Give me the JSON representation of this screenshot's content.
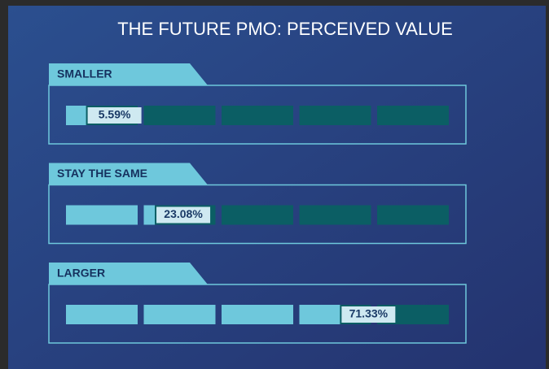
{
  "chart_data": {
    "type": "segmented-bar",
    "title": "THE FUTURE PMO: PERCEIVED VALUE",
    "categories": [
      "SMALLER",
      "STAY THE SAME",
      "LARGER"
    ],
    "values": [
      5.59,
      23.08,
      71.33
    ],
    "value_labels": [
      "5.59%",
      "23.08%",
      "71.33%"
    ],
    "xlim": [
      0,
      100
    ],
    "color": "#6ec8dc",
    "track_color": "#0b5e64"
  }
}
